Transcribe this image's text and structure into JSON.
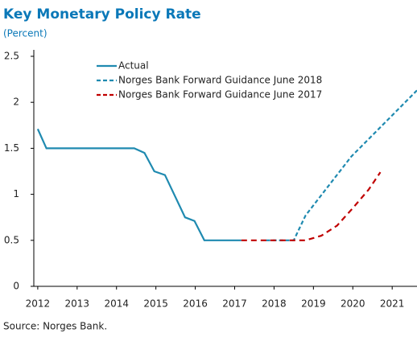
{
  "chart_data": {
    "type": "line",
    "title": "Key Monetary Policy Rate",
    "subtitle": "(Percent)",
    "source": "Source: Norges Bank.",
    "xlim": [
      2011.9,
      2021.63
    ],
    "xticks": [
      2012,
      2013,
      2014,
      2015,
      2016,
      2017,
      2018,
      2019,
      2020,
      2021
    ],
    "ylim": [
      0,
      2.5
    ],
    "yticks": [
      0,
      0.5,
      1,
      1.5,
      2,
      2.5
    ],
    "grid": false,
    "legend": "top",
    "series": [
      {
        "name": "Actual",
        "color": "#1f8ab0",
        "style": "solid",
        "x": [
          2012.0,
          2012.22,
          2014.45,
          2014.71,
          2014.96,
          2015.23,
          2015.74,
          2015.98,
          2016.23,
          2017.17
        ],
        "values": [
          1.71,
          1.5,
          1.5,
          1.45,
          1.25,
          1.21,
          0.75,
          0.71,
          0.5,
          0.5
        ]
      },
      {
        "name": "Norges Bank Forward Guidance June 2018",
        "color": "#1f8ab0",
        "style": "dashed",
        "x": [
          2017.8,
          2018.5,
          2018.8,
          2019.96,
          2021.63
        ],
        "values": [
          0.5,
          0.5,
          0.77,
          1.41,
          2.13
        ]
      },
      {
        "name": "Norges Bank Forward Guidance June 2017",
        "color": "#c00000",
        "style": "dashed",
        "x": [
          2017.17,
          2018.8,
          2019.2,
          2019.6,
          2020.0,
          2020.4,
          2020.7
        ],
        "values": [
          0.5,
          0.5,
          0.55,
          0.66,
          0.85,
          1.05,
          1.24
        ]
      }
    ]
  }
}
